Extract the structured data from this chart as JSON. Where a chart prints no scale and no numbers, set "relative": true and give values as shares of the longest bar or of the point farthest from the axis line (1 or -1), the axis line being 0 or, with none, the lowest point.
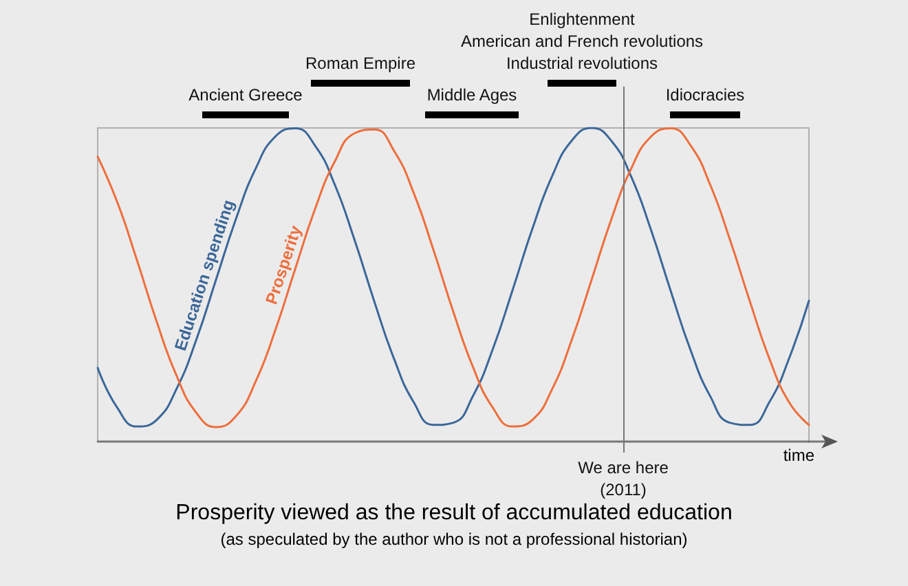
{
  "chart_data": {
    "type": "line",
    "relative": true,
    "title": "Prosperity viewed as the result of accumulated education",
    "subtitle": "(as speculated by the author who is not a professional historian)",
    "xlabel": "time",
    "categories": [
      null,
      null,
      null,
      null,
      null,
      null,
      null,
      null,
      null,
      null,
      null,
      null,
      null,
      null,
      null,
      null,
      null,
      null,
      null,
      null,
      null,
      null,
      null,
      null,
      null,
      null,
      null,
      null,
      null,
      null,
      null,
      null,
      null,
      null,
      null,
      null,
      null
    ],
    "series": [
      {
        "name": "Education spending",
        "color": "#3b6799",
        "values": [
          0.235,
          0.107,
          0.048,
          0.07,
          0.169,
          0.326,
          0.518,
          0.71,
          0.871,
          0.973,
          0.999,
          0.944,
          0.819,
          0.643,
          0.447,
          0.264,
          0.125,
          0.053,
          0.06,
          0.146,
          0.295,
          0.483,
          0.678,
          0.846,
          0.96,
          1.0,
          0.959,
          0.845,
          0.676,
          0.481,
          0.293,
          0.145,
          0.06,
          0.053,
          0.126,
          0.266,
          0.449
        ]
      },
      {
        "name": "Prosperity",
        "color": "#ee6e3c",
        "values": [
          0.908,
          0.762,
          0.576,
          0.38,
          0.209,
          0.091,
          0.046,
          0.081,
          0.192,
          0.357,
          0.551,
          0.741,
          0.893,
          0.983,
          0.995,
          0.927,
          0.792,
          0.61,
          0.414,
          0.237,
          0.108,
          0.048,
          0.069,
          0.167,
          0.325,
          0.516,
          0.709,
          0.87,
          0.972,
          0.999,
          0.945,
          0.819,
          0.644,
          0.449,
          0.264,
          0.125,
          0.053
        ]
      }
    ],
    "annotations": [
      "Ancient Greece",
      "Roman Empire",
      "Middle Ages",
      "Enlightenment\nAmerican and French revolutions\nIndustrial revolutions",
      "Idiocracies",
      "We are here\n(2011)"
    ],
    "grid": false,
    "legend": false,
    "marker": "none",
    "line_style": "solid"
  }
}
